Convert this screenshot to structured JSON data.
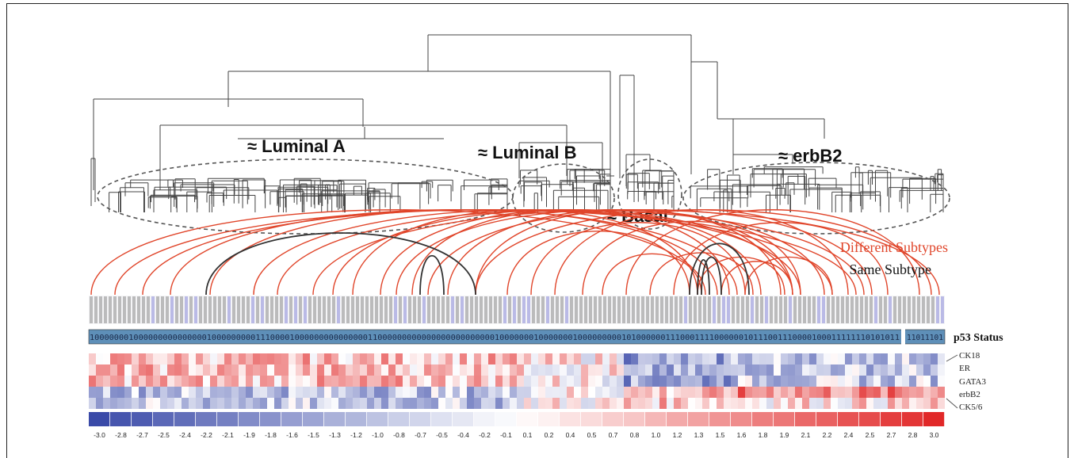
{
  "clusters": {
    "luminal_a": "≈ Luminal A",
    "luminal_b": "≈ Luminal B",
    "basal": "≈ Basal",
    "erbb2": "≈ erbB2"
  },
  "legend": {
    "different": "Different Subtypes",
    "same": "Same Subtype"
  },
  "colors": {
    "different_arc": "#e0452a",
    "same_arc": "#333333",
    "scale_low": "#3a4aa8",
    "scale_high": "#e02a2a"
  },
  "p53": {
    "label": "p53 Status",
    "sequence": "1000000010000000000000001000000000111000010000000000000001100000000000000000000000010000000100000001000000000101000000111000111100000010111001110000100011111110101011",
    "tail": "11011101"
  },
  "genes": [
    "CK18",
    "ER",
    "GATA3",
    "erbB2",
    "CK5/6"
  ],
  "colorscale": {
    "ticks": [
      "-3.0",
      "-2.8",
      "-2.7",
      "-2.5",
      "-2.4",
      "-2.2",
      "-2.1",
      "-1.9",
      "-1.8",
      "-1.6",
      "-1.5",
      "-1.3",
      "-1.2",
      "-1.0",
      "-0.8",
      "-0.7",
      "-0.5",
      "-0.4",
      "-0.2",
      "-0.1",
      "0.1",
      "0.2",
      "0.4",
      "0.5",
      "0.7",
      "0.8",
      "1.0",
      "1.2",
      "1.3",
      "1.5",
      "1.6",
      "1.8",
      "1.9",
      "2.1",
      "2.2",
      "2.4",
      "2.5",
      "2.7",
      "2.8",
      "3.0"
    ]
  }
}
